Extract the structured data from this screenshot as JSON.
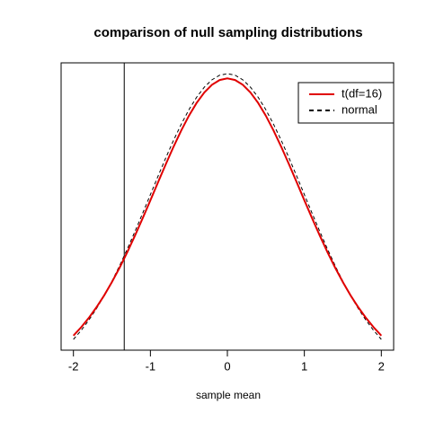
{
  "chart_data": {
    "type": "line",
    "title": "comparison of null sampling distributions",
    "x_label": "sample mean",
    "x": [
      -2,
      -1.9,
      -1.8,
      -1.7,
      -1.6,
      -1.5,
      -1.4,
      -1.3,
      -1.2,
      -1.1,
      -1,
      -0.9,
      -0.8,
      -0.7,
      -0.6,
      -0.5,
      -0.4,
      -0.3,
      -0.2,
      -0.1,
      0,
      0.1,
      0.2,
      0.3,
      0.4,
      0.5,
      0.6,
      0.7,
      0.8,
      0.9,
      1,
      1.1,
      1.2,
      1.3,
      1.4,
      1.5,
      1.6,
      1.7,
      1.8,
      1.9,
      2
    ],
    "series": [
      {
        "name": "t(df=16)",
        "color": "#e00000",
        "dash": "solid",
        "values": [
          0.0589,
          0.0697,
          0.0819,
          0.0958,
          0.1112,
          0.1284,
          0.1471,
          0.1673,
          0.1888,
          0.2114,
          0.2346,
          0.2582,
          0.2814,
          0.304,
          0.3251,
          0.3443,
          0.3609,
          0.3745,
          0.3846,
          0.3907,
          0.3928,
          0.3907,
          0.3846,
          0.3745,
          0.3609,
          0.3443,
          0.3251,
          0.304,
          0.2814,
          0.2582,
          0.2346,
          0.2114,
          0.1888,
          0.1673,
          0.1471,
          0.1284,
          0.1112,
          0.0958,
          0.0819,
          0.0697,
          0.0589
        ]
      },
      {
        "name": "normal",
        "color": "#000000",
        "dash": "dashed",
        "values": [
          0.054,
          0.0656,
          0.079,
          0.094,
          0.1109,
          0.1295,
          0.1497,
          0.1714,
          0.1942,
          0.2179,
          0.242,
          0.2661,
          0.2897,
          0.3123,
          0.3332,
          0.3521,
          0.3683,
          0.3814,
          0.391,
          0.397,
          0.3989,
          0.397,
          0.391,
          0.3814,
          0.3683,
          0.3521,
          0.3332,
          0.3123,
          0.2897,
          0.2661,
          0.242,
          0.2179,
          0.1942,
          0.1714,
          0.1497,
          0.1295,
          0.1109,
          0.094,
          0.079,
          0.0656,
          0.054
        ]
      }
    ],
    "vline": -1.34,
    "xlim": [
      -2.16,
      2.16
    ],
    "xticks": [
      -2,
      -1,
      0,
      1,
      2
    ],
    "ylim": [
      0.04,
      0.413
    ],
    "legend": "topright"
  }
}
